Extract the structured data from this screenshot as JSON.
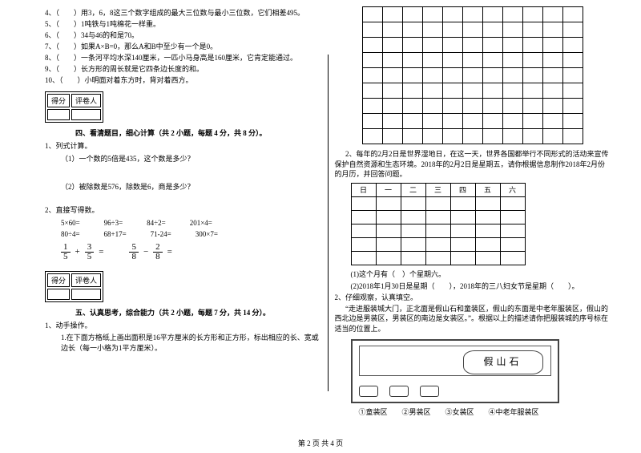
{
  "left": {
    "q4": "4、（　　）用3，6，8这三个数字组成的最大三位数与最小三位数，它们相差495。",
    "q5": "5、（　　）1吨铁与1吨棉花一样重。",
    "q6": "6、（　　）34与46的和是70。",
    "q7": "7、（　　）如果A×B=0，那么A和B中至少有一个是0。",
    "q8": "8、（　　）一条河平均水深140厘米，一匹小马身高是160厘米，它肯定能通过。",
    "q9": "9、（　　）长方形的周长就是它四条边长度的和。",
    "q10": "10、（　　）小明面对着东方时，背对着西方。",
    "score_h1": "得分",
    "score_h2": "评卷人",
    "sec4": "四、看清题目，细心计算（共 2 小题，每题 4 分，共 8 分）。",
    "p1": "1、列式计算。",
    "p1a": "（1）一个数的5倍是435，这个数是多少？",
    "p1b": "（2）被除数是576，除数是6，商是多少？",
    "p2": "2、直接写得数。",
    "m": {
      "a1": "5×60=",
      "a2": "96÷3=",
      "a3": "84÷2=",
      "a4": "201×4=",
      "b1": "80÷4=",
      "b2": "68+17=",
      "b3": "71-24=",
      "b4": "300×7="
    },
    "sec5": "五、认真思考，综合能力（共 2 小题，每题 7 分，共 14 分）。",
    "p5_1": "1、动手操作。",
    "p5_1a": "1.在下面方格纸上画出面积是16平方厘米的长方形和正方形，标出相应的长、宽或边长（每一小格为1平方厘米）。"
  },
  "right": {
    "t2": "2、每年的2月2日是世界湿地日，在这一天，世界各国都举行不同形式的活动来宣传保护自然资源和生态环境。2018年的2月2日是星期五，请你根据信息制作2018年2月份的月历，并回答问题。",
    "days": [
      "日",
      "一",
      "二",
      "三",
      "四",
      "五",
      "六"
    ],
    "q1": "(1)这个月有（　）个星期六。",
    "q2": "(2)2018年1月30日是星期（　　），2018年的三八妇女节是星期（　　）。",
    "obs_h": "2、仔细观察，认真填空。",
    "obs": "“走进服装城大门，正北面是假山石和童装区，假山的东面是中老年服装区，假山的西北边是男装区，男装区的南边是女装区。”。根据以上的描述请你把服装城的序号标在适当的位置上。",
    "rock": "假山石",
    "legend": "①童装区　　②男装区　　③女装区　　④中老年服装区"
  },
  "footer": "第 2 页 共 4 页",
  "grid": {
    "rows": 9,
    "cols": 11
  },
  "cal": {
    "rows": 5,
    "cols": 7
  }
}
